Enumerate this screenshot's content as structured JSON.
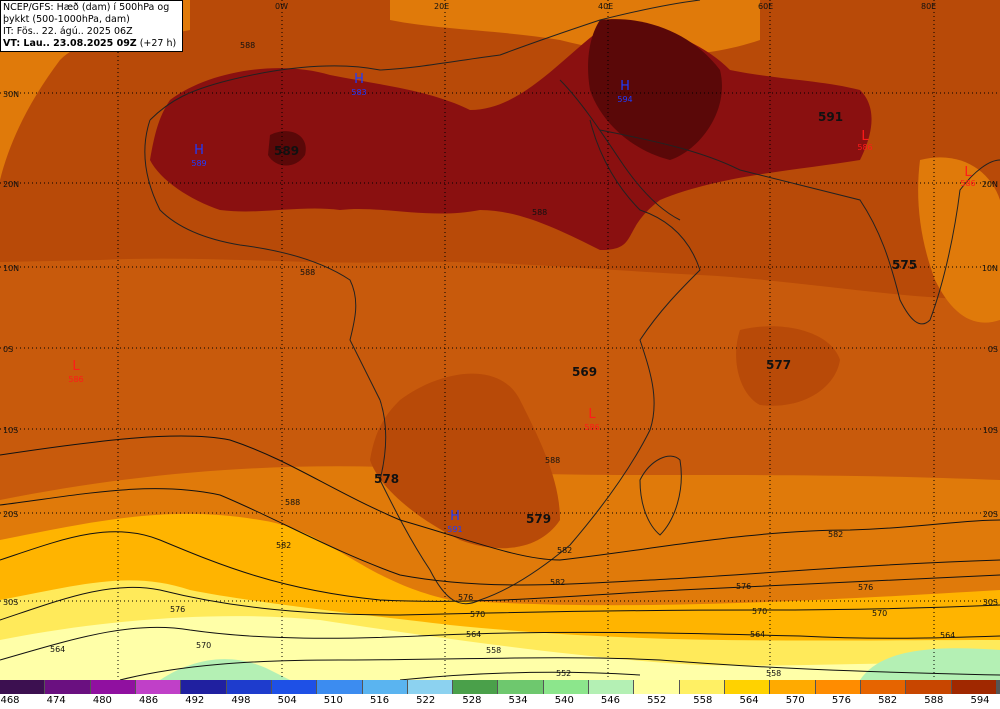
{
  "title": {
    "line1": "NCEP/GFS: Hæð (dam) í 500hPa og",
    "line2": "þykkt (500-1000hPa, dam)",
    "line3": "IT: Fös.. 22. ágú.. 2025 06Z",
    "line4": "VT: Lau.. 23.08.2025 09Z",
    "line4_suffix": "(+27 h)"
  },
  "longitude_labels": [
    "0W",
    "20E",
    "40E",
    "60E",
    "80E"
  ],
  "latitude_labels_left": [
    "30N",
    "20N",
    "10N",
    "0S",
    "10S",
    "20S",
    "30S"
  ],
  "latitude_labels_right": [
    "20N",
    "10N",
    "0S",
    "10S",
    "20S",
    "30S"
  ],
  "pressure_centers": [
    {
      "type": "H",
      "value": "583",
      "color": "#1e3cff"
    },
    {
      "type": "H",
      "value": "589",
      "color": "#1e3cff"
    },
    {
      "type": "H",
      "value": "594",
      "color": "#1e3cff"
    },
    {
      "type": "H",
      "value": "591",
      "color": "#1e3cff"
    },
    {
      "type": "L",
      "value": "586",
      "color": "#ff1a1a"
    },
    {
      "type": "L",
      "value": "586",
      "color": "#ff1a1a"
    },
    {
      "type": "L",
      "value": "586",
      "color": "#ff1a1a"
    },
    {
      "type": "L",
      "value": "586",
      "color": "#ff1a1a"
    }
  ],
  "thickness_labels": [
    "589",
    "591",
    "575",
    "577",
    "569",
    "578",
    "579"
  ],
  "contour_labels": [
    "588",
    "588",
    "588",
    "588",
    "588",
    "582",
    "582",
    "582",
    "582",
    "576",
    "576",
    "576",
    "576",
    "570",
    "570",
    "570",
    "570",
    "564",
    "564",
    "564",
    "558",
    "558",
    "552",
    "564"
  ],
  "legend": {
    "labels": [
      "468",
      "474",
      "480",
      "486",
      "492",
      "498",
      "504",
      "510",
      "516",
      "522",
      "528",
      "534",
      "540",
      "546",
      "552",
      "558",
      "564",
      "570",
      "576",
      "582",
      "588",
      "594"
    ],
    "colors": [
      "#3c1050",
      "#6a1080",
      "#9010a0",
      "#c040c8",
      "#2020a0",
      "#1e3ccd",
      "#1e50e6",
      "#3c8cf0",
      "#5ab4f0",
      "#8cd2f0",
      "#4aa04a",
      "#6ec86e",
      "#8ce68c",
      "#b4f0b4",
      "#ffffa0",
      "#fff064",
      "#ffd200",
      "#ffaa00",
      "#ff8c00",
      "#e66400",
      "#c84600",
      "#a02800",
      "#6e0a0a",
      "#3c0000",
      "#000000"
    ]
  }
}
